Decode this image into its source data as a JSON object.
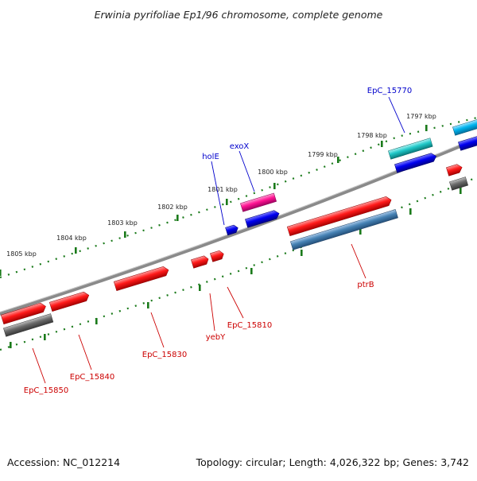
{
  "title": "Erwinia pyrifoliae Ep1/96 chromosome, complete genome",
  "footer": {
    "accession": "Accession: NC_012214",
    "topology": "Topology: circular; Length: 4,026,322 bp; Genes: 3,742"
  },
  "colors": {
    "backbone": "#808080",
    "tick": "#1a7a1a",
    "label_blue": "#0000cc",
    "label_red": "#cc0000",
    "red": "#ff0000",
    "blue": "#0000ee",
    "magenta": "#ff1493",
    "cyan": "#20c8c8",
    "skyblue": "#00b4ee",
    "steelblue": "#4682b4",
    "gray": "#666666"
  },
  "ruler_labels": [
    "1805 kbp",
    "1804 kbp",
    "1803 kbp",
    "1802 kbp",
    "1801 kbp",
    "1800 kbp",
    "1799 kbp",
    "1798 kbp",
    "1797 kbp"
  ],
  "gene_labels": {
    "holE": "holE",
    "exoX": "exoX",
    "EpC_15770": "EpC_15770",
    "ptrB": "ptrB",
    "EpC_15810": "EpC_15810",
    "yebY": "yebY",
    "EpC_15830": "EpC_15830",
    "EpC_15840": "EpC_15840",
    "EpC_15850": "EpC_15850"
  }
}
